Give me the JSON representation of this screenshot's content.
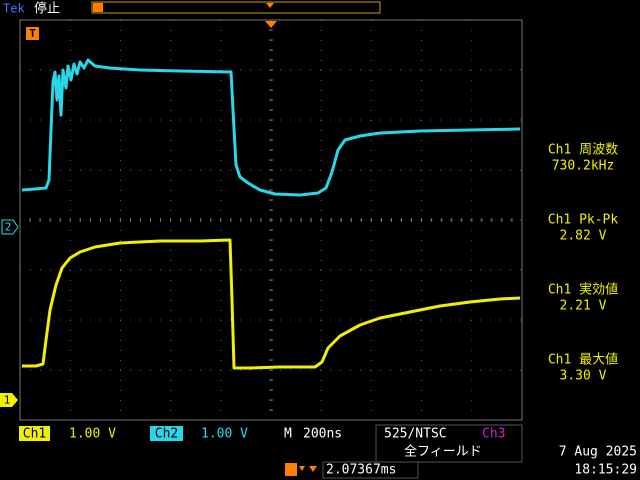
{
  "header": {
    "brand": "Tek",
    "status": "停止"
  },
  "markers": {
    "trigger": "T",
    "ch2": "2",
    "ch1": "1"
  },
  "measurements": [
    {
      "label": "Ch1 周波数",
      "value": "730.2kHz"
    },
    {
      "label": "Ch1 Pk-Pk",
      "value": "2.82 V"
    },
    {
      "label": "Ch1 実効値",
      "value": "2.21 V"
    },
    {
      "label": "Ch1 最大値",
      "value": "3.30 V"
    }
  ],
  "channels": [
    {
      "name": "Ch1",
      "scale": "1.00 V"
    },
    {
      "name": "Ch2",
      "scale": "1.00 V"
    }
  ],
  "timebase": {
    "label": "M",
    "value": "200ns"
  },
  "trigger": {
    "source": "525/NTSC",
    "channel": "Ch3",
    "mode": "全フィールド",
    "position": "2.07367ms"
  },
  "datetime": {
    "date": "7 Aug 2025",
    "time": "18:15:29"
  }
}
